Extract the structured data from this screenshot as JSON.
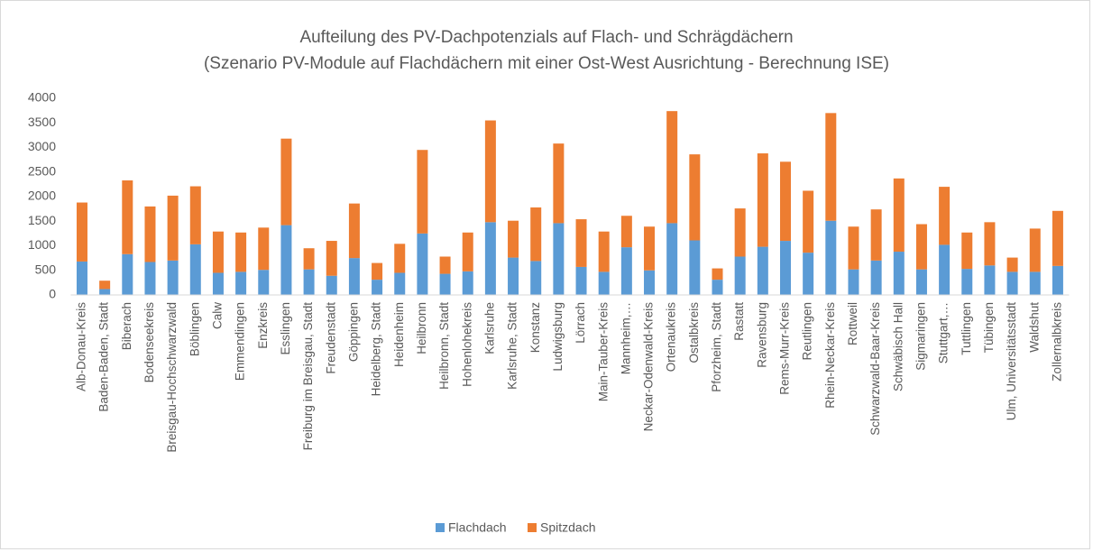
{
  "chart_data": {
    "type": "bar",
    "stacked": true,
    "title": "Aufteilung des PV-Dachpotenzials auf Flach- und Schrägdächern",
    "subtitle": "(Szenario PV-Module auf Flachdächern mit einer Ost-West Ausrichtung - Berechnung ISE)",
    "categories": [
      "Alb-Donau-Kreis",
      "Baden-Baden, Stadt",
      "Biberach",
      "Bodenseekreis",
      "Breisgau-Hochschwarzwald",
      "Böblingen",
      "Calw",
      "Emmendingen",
      "Enzkreis",
      "Esslingen",
      "Freiburg im Breisgau, Stadt",
      "Freudenstadt",
      "Göppingen",
      "Heidelberg, Stadt",
      "Heidenheim",
      "Heilbronn",
      "Heilbronn, Stadt",
      "Hohenlohekreis",
      "Karlsruhe",
      "Karlsruhe, Stadt",
      "Konstanz",
      "Ludwigsburg",
      "Lörrach",
      "Main-Tauber-Kreis",
      "Mannheim,…",
      "Neckar-Odenwald-Kreis",
      "Ortenaukreis",
      "Ostalbkreis",
      "Pforzheim, Stadt",
      "Rastatt",
      "Ravensburg",
      "Rems-Murr-Kreis",
      "Reutlingen",
      "Rhein-Neckar-Kreis",
      "Rottweil",
      "Schwarzwald-Baar-Kreis",
      "Schwäbisch Hall",
      "Sigmaringen",
      "Stuttgart,…",
      "Tuttlingen",
      "Tübingen",
      "Ulm, Universitätsstadt",
      "Waldshut",
      "Zollernalbkreis"
    ],
    "series": [
      {
        "name": "Flachdach",
        "color": "#5b9bd5",
        "values": [
          680,
          120,
          830,
          670,
          700,
          1030,
          450,
          470,
          510,
          1420,
          520,
          390,
          750,
          310,
          450,
          1250,
          430,
          480,
          1480,
          760,
          690,
          1460,
          570,
          470,
          970,
          500,
          1460,
          1110,
          310,
          780,
          980,
          1100,
          860,
          1510,
          520,
          700,
          880,
          520,
          1020,
          530,
          600,
          470,
          470,
          590
        ]
      },
      {
        "name": "Spitzdach",
        "color": "#ed7d31",
        "values": [
          1200,
          170,
          1500,
          1130,
          1320,
          1180,
          840,
          800,
          860,
          1760,
          430,
          710,
          1110,
          340,
          590,
          1700,
          350,
          790,
          2070,
          750,
          1090,
          1620,
          970,
          820,
          640,
          890,
          2280,
          1750,
          230,
          980,
          1900,
          1610,
          1260,
          2190,
          870,
          1040,
          1490,
          920,
          1180,
          740,
          880,
          290,
          880,
          1120
        ]
      }
    ],
    "ylim": [
      0,
      4000
    ],
    "yticks": [
      0,
      500,
      1000,
      1500,
      2000,
      2500,
      3000,
      3500,
      4000
    ],
    "grid": false,
    "legend": "bottom"
  }
}
